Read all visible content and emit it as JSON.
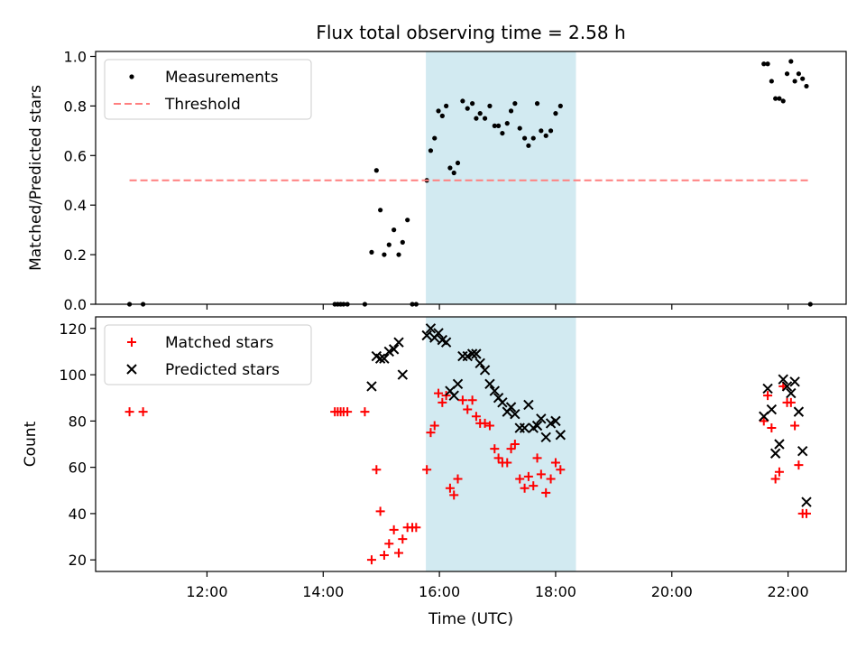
{
  "figure": {
    "title": "Flux total observing time = 2.58 h",
    "xlabel": "Time (UTC)",
    "highlight_color": "#add8e6",
    "highlight_span": [
      "15:46",
      "18:21"
    ]
  },
  "chart_data": [
    {
      "type": "scatter",
      "title": "Flux total observing time = 2.58 h",
      "xlabel": "",
      "ylabel": "Matched/Predicted stars",
      "xlim": [
        "10:05",
        "23:00"
      ],
      "ylim": [
        0,
        1.02
      ],
      "yticks": [
        "0.0",
        "0.2",
        "0.4",
        "0.6",
        "0.8",
        "1.0"
      ],
      "legend_position": "top-left",
      "series": [
        {
          "name": "Measurements",
          "marker": "dot",
          "color": "#000000",
          "points": [
            [
              "10:40",
              0.0
            ],
            [
              "10:54",
              0.0
            ],
            [
              "14:12",
              0.0
            ],
            [
              "14:15",
              0.0
            ],
            [
              "14:18",
              0.0
            ],
            [
              "14:21",
              0.0
            ],
            [
              "14:25",
              0.0
            ],
            [
              "14:43",
              0.0
            ],
            [
              "14:50",
              0.21
            ],
            [
              "14:55",
              0.54
            ],
            [
              "14:59",
              0.38
            ],
            [
              "15:03",
              0.2
            ],
            [
              "15:08",
              0.24
            ],
            [
              "15:13",
              0.3
            ],
            [
              "15:18",
              0.2
            ],
            [
              "15:22",
              0.25
            ],
            [
              "15:27",
              0.34
            ],
            [
              "15:32",
              0.0
            ],
            [
              "15:36",
              0.0
            ],
            [
              "15:47",
              0.5
            ],
            [
              "15:51",
              0.62
            ],
            [
              "15:55",
              0.67
            ],
            [
              "15:59",
              0.78
            ],
            [
              "16:03",
              0.76
            ],
            [
              "16:07",
              0.8
            ],
            [
              "16:11",
              0.55
            ],
            [
              "16:15",
              0.53
            ],
            [
              "16:19",
              0.57
            ],
            [
              "16:24",
              0.82
            ],
            [
              "16:29",
              0.79
            ],
            [
              "16:34",
              0.81
            ],
            [
              "16:38",
              0.75
            ],
            [
              "16:42",
              0.77
            ],
            [
              "16:47",
              0.75
            ],
            [
              "16:52",
              0.8
            ],
            [
              "16:57",
              0.72
            ],
            [
              "17:01",
              0.72
            ],
            [
              "17:05",
              0.69
            ],
            [
              "17:10",
              0.73
            ],
            [
              "17:14",
              0.78
            ],
            [
              "17:18",
              0.81
            ],
            [
              "17:23",
              0.71
            ],
            [
              "17:28",
              0.67
            ],
            [
              "17:32",
              0.64
            ],
            [
              "17:37",
              0.67
            ],
            [
              "17:41",
              0.81
            ],
            [
              "17:45",
              0.7
            ],
            [
              "17:50",
              0.68
            ],
            [
              "17:55",
              0.7
            ],
            [
              "18:00",
              0.77
            ],
            [
              "18:05",
              0.8
            ],
            [
              "21:35",
              0.97
            ],
            [
              "21:39",
              0.97
            ],
            [
              "21:43",
              0.9
            ],
            [
              "21:47",
              0.83
            ],
            [
              "21:51",
              0.83
            ],
            [
              "21:55",
              0.82
            ],
            [
              "21:59",
              0.93
            ],
            [
              "22:03",
              0.98
            ],
            [
              "22:07",
              0.9
            ],
            [
              "22:11",
              0.93
            ],
            [
              "22:15",
              0.91
            ],
            [
              "22:19",
              0.88
            ],
            [
              "22:23",
              0.0
            ]
          ]
        },
        {
          "name": "Threshold",
          "marker": "dashed-line",
          "color": "#ff7f7f",
          "points": [
            [
              "10:40",
              0.5
            ],
            [
              "22:23",
              0.5
            ]
          ]
        }
      ]
    },
    {
      "type": "scatter",
      "title": "",
      "xlabel": "Time (UTC)",
      "ylabel": "Count",
      "xlim": [
        "10:05",
        "23:00"
      ],
      "ylim": [
        15,
        125
      ],
      "yticks": [
        "20",
        "40",
        "60",
        "80",
        "100",
        "120"
      ],
      "xticks": [
        "12:00",
        "14:00",
        "16:00",
        "18:00",
        "20:00",
        "22:00"
      ],
      "legend_position": "top-left",
      "series": [
        {
          "name": "Matched stars",
          "marker": "plus",
          "color": "#ff0000",
          "points": [
            [
              "10:40",
              84
            ],
            [
              "10:54",
              84
            ],
            [
              "14:12",
              84
            ],
            [
              "14:15",
              84
            ],
            [
              "14:18",
              84
            ],
            [
              "14:21",
              84
            ],
            [
              "14:25",
              84
            ],
            [
              "14:43",
              84
            ],
            [
              "14:50",
              20
            ],
            [
              "14:55",
              59
            ],
            [
              "14:59",
              41
            ],
            [
              "15:03",
              22
            ],
            [
              "15:08",
              27
            ],
            [
              "15:13",
              33
            ],
            [
              "15:18",
              23
            ],
            [
              "15:22",
              29
            ],
            [
              "15:27",
              34
            ],
            [
              "15:32",
              34
            ],
            [
              "15:36",
              34
            ],
            [
              "15:47",
              59
            ],
            [
              "15:51",
              75
            ],
            [
              "15:55",
              78
            ],
            [
              "15:59",
              92
            ],
            [
              "16:03",
              88
            ],
            [
              "16:07",
              91
            ],
            [
              "16:11",
              51
            ],
            [
              "16:15",
              48
            ],
            [
              "16:19",
              55
            ],
            [
              "16:24",
              89
            ],
            [
              "16:29",
              85
            ],
            [
              "16:34",
              89
            ],
            [
              "16:38",
              82
            ],
            [
              "16:42",
              79
            ],
            [
              "16:47",
              79
            ],
            [
              "16:52",
              78
            ],
            [
              "16:57",
              68
            ],
            [
              "17:01",
              64
            ],
            [
              "17:05",
              62
            ],
            [
              "17:10",
              62
            ],
            [
              "17:14",
              68
            ],
            [
              "17:18",
              70
            ],
            [
              "17:23",
              55
            ],
            [
              "17:28",
              51
            ],
            [
              "17:32",
              56
            ],
            [
              "17:37",
              52
            ],
            [
              "17:41",
              64
            ],
            [
              "17:45",
              57
            ],
            [
              "17:50",
              49
            ],
            [
              "17:55",
              55
            ],
            [
              "18:00",
              62
            ],
            [
              "18:05",
              59
            ],
            [
              "21:35",
              80
            ],
            [
              "21:39",
              91
            ],
            [
              "21:43",
              77
            ],
            [
              "21:47",
              55
            ],
            [
              "21:51",
              58
            ],
            [
              "21:55",
              95
            ],
            [
              "21:59",
              88
            ],
            [
              "22:03",
              88
            ],
            [
              "22:07",
              78
            ],
            [
              "22:11",
              61
            ],
            [
              "22:15",
              40
            ],
            [
              "22:19",
              40
            ]
          ]
        },
        {
          "name": "Predicted stars",
          "marker": "x",
          "color": "#000000",
          "points": [
            [
              "14:50",
              95
            ],
            [
              "14:55",
              108
            ],
            [
              "14:59",
              107
            ],
            [
              "15:03",
              107
            ],
            [
              "15:08",
              110
            ],
            [
              "15:13",
              111
            ],
            [
              "15:18",
              114
            ],
            [
              "15:22",
              100
            ],
            [
              "15:47",
              117
            ],
            [
              "15:51",
              120
            ],
            [
              "15:55",
              116
            ],
            [
              "15:59",
              118
            ],
            [
              "16:03",
              115
            ],
            [
              "16:07",
              114
            ],
            [
              "16:11",
              93
            ],
            [
              "16:15",
              91
            ],
            [
              "16:19",
              96
            ],
            [
              "16:24",
              108
            ],
            [
              "16:29",
              108
            ],
            [
              "16:34",
              109
            ],
            [
              "16:38",
              109
            ],
            [
              "16:42",
              105
            ],
            [
              "16:47",
              102
            ],
            [
              "16:52",
              96
            ],
            [
              "16:57",
              93
            ],
            [
              "17:01",
              90
            ],
            [
              "17:05",
              88
            ],
            [
              "17:10",
              84
            ],
            [
              "17:14",
              86
            ],
            [
              "17:18",
              83
            ],
            [
              "17:23",
              77
            ],
            [
              "17:28",
              77
            ],
            [
              "17:32",
              87
            ],
            [
              "17:37",
              77
            ],
            [
              "17:41",
              78
            ],
            [
              "17:45",
              81
            ],
            [
              "17:50",
              73
            ],
            [
              "17:55",
              79
            ],
            [
              "18:00",
              80
            ],
            [
              "18:05",
              74
            ],
            [
              "21:35",
              82
            ],
            [
              "21:39",
              94
            ],
            [
              "21:43",
              85
            ],
            [
              "21:47",
              66
            ],
            [
              "21:51",
              70
            ],
            [
              "21:55",
              98
            ],
            [
              "21:59",
              95
            ],
            [
              "22:03",
              92
            ],
            [
              "22:07",
              97
            ],
            [
              "22:11",
              84
            ],
            [
              "22:15",
              67
            ],
            [
              "22:19",
              45
            ]
          ]
        }
      ]
    }
  ]
}
